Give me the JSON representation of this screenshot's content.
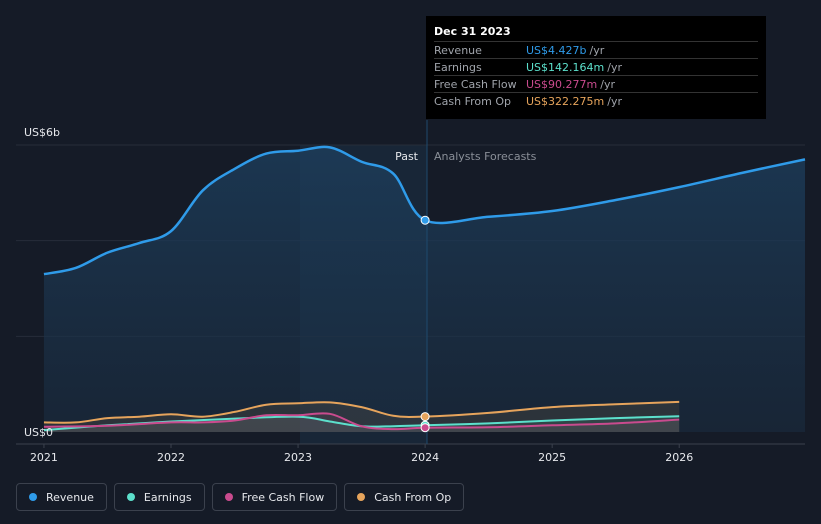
{
  "chart_data": {
    "type": "line",
    "y_axis": {
      "top_label": "US$6b",
      "bottom_label": "US$0",
      "ylim": [
        0,
        6
      ]
    },
    "x_axis": {
      "ticks": [
        "2021",
        "2022",
        "2023",
        "2024",
        "2025",
        "2026"
      ],
      "xlim": [
        2020.78,
        2026.99
      ]
    },
    "past_label": "Past",
    "forecast_label": "Analysts Forecasts",
    "divider_x": 2024.0,
    "series": [
      {
        "name": "Revenue",
        "color": "#2f9be9",
        "unit": "b",
        "past": [
          [
            2021.0,
            3.3
          ],
          [
            2021.25,
            3.43
          ],
          [
            2021.5,
            3.75
          ],
          [
            2021.75,
            3.95
          ],
          [
            2022.0,
            4.2
          ],
          [
            2022.25,
            5.05
          ],
          [
            2022.5,
            5.5
          ],
          [
            2022.75,
            5.82
          ],
          [
            2023.0,
            5.88
          ],
          [
            2023.25,
            5.95
          ],
          [
            2023.5,
            5.65
          ],
          [
            2023.75,
            5.4
          ],
          [
            2024.0,
            4.427
          ]
        ],
        "forecast": [
          [
            2024.0,
            4.427
          ],
          [
            2024.5,
            4.5
          ],
          [
            2025.0,
            4.62
          ],
          [
            2025.5,
            4.85
          ],
          [
            2026.0,
            5.12
          ],
          [
            2026.5,
            5.42
          ],
          [
            2026.99,
            5.7
          ]
        ]
      },
      {
        "name": "Earnings",
        "color": "#5ce0cc",
        "unit": "m",
        "past": [
          [
            2021.0,
            0.04
          ],
          [
            2021.5,
            0.14
          ],
          [
            2022.0,
            0.22
          ],
          [
            2022.5,
            0.28
          ],
          [
            2023.0,
            0.32
          ],
          [
            2023.25,
            0.22
          ],
          [
            2023.5,
            0.12
          ],
          [
            2023.75,
            0.12
          ],
          [
            2024.0,
            0.142
          ]
        ],
        "forecast": [
          [
            2024.0,
            0.142
          ],
          [
            2024.5,
            0.18
          ],
          [
            2025.0,
            0.24
          ],
          [
            2025.5,
            0.29
          ],
          [
            2026.0,
            0.33
          ]
        ]
      },
      {
        "name": "Free Cash Flow",
        "color": "#c94b8e",
        "unit": "m",
        "past": [
          [
            2021.0,
            0.11
          ],
          [
            2021.5,
            0.13
          ],
          [
            2022.0,
            0.2
          ],
          [
            2022.25,
            0.2
          ],
          [
            2022.5,
            0.24
          ],
          [
            2022.75,
            0.35
          ],
          [
            2023.0,
            0.35
          ],
          [
            2023.25,
            0.38
          ],
          [
            2023.5,
            0.12
          ],
          [
            2023.75,
            0.06
          ],
          [
            2024.0,
            0.09
          ]
        ],
        "forecast": [
          [
            2024.0,
            0.09
          ],
          [
            2024.5,
            0.1
          ],
          [
            2025.0,
            0.14
          ],
          [
            2025.5,
            0.18
          ],
          [
            2026.0,
            0.26
          ]
        ]
      },
      {
        "name": "Cash From Op",
        "color": "#e6a45c",
        "unit": "m",
        "past": [
          [
            2021.0,
            0.2
          ],
          [
            2021.25,
            0.2
          ],
          [
            2021.5,
            0.29
          ],
          [
            2021.75,
            0.32
          ],
          [
            2022.0,
            0.37
          ],
          [
            2022.25,
            0.32
          ],
          [
            2022.5,
            0.42
          ],
          [
            2022.75,
            0.57
          ],
          [
            2023.0,
            0.6
          ],
          [
            2023.25,
            0.62
          ],
          [
            2023.5,
            0.52
          ],
          [
            2023.75,
            0.34
          ],
          [
            2024.0,
            0.322
          ]
        ],
        "forecast": [
          [
            2024.0,
            0.322
          ],
          [
            2024.5,
            0.4
          ],
          [
            2025.0,
            0.52
          ],
          [
            2025.5,
            0.58
          ],
          [
            2026.0,
            0.63
          ]
        ]
      }
    ],
    "marker_x": 2024.0
  },
  "tooltip": {
    "date": "Dec 31 2023",
    "rows": [
      {
        "label": "Revenue",
        "value": "US$4.427b",
        "unit": "/yr",
        "color": "#2f9be9"
      },
      {
        "label": "Earnings",
        "value": "US$142.164m",
        "unit": "/yr",
        "color": "#5ce0cc"
      },
      {
        "label": "Free Cash Flow",
        "value": "US$90.277m",
        "unit": "/yr",
        "color": "#c94b8e"
      },
      {
        "label": "Cash From Op",
        "value": "US$322.275m",
        "unit": "/yr",
        "color": "#e6a45c"
      }
    ]
  },
  "legend": [
    {
      "label": "Revenue",
      "color": "#2f9be9"
    },
    {
      "label": "Earnings",
      "color": "#5ce0cc"
    },
    {
      "label": "Free Cash Flow",
      "color": "#c94b8e"
    },
    {
      "label": "Cash From Op",
      "color": "#e6a45c"
    }
  ]
}
